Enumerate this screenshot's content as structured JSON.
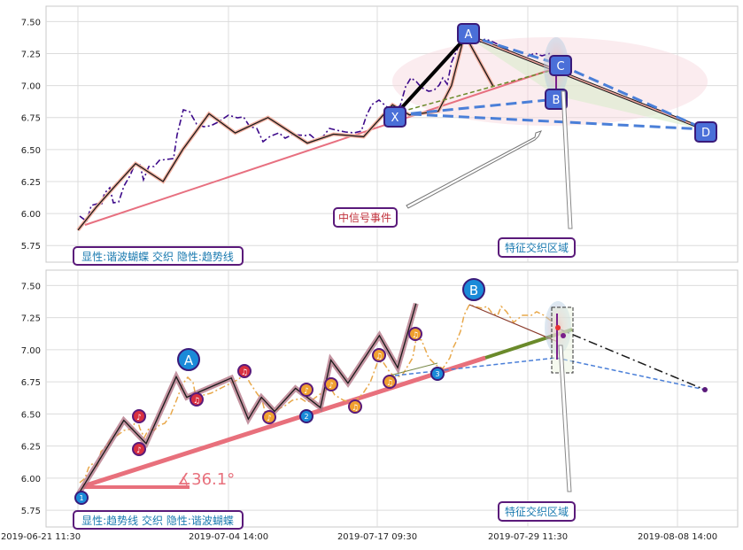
{
  "chart_data": [
    {
      "type": "line",
      "panel": "top",
      "ylim": [
        5.62,
        7.62
      ],
      "yticks": [
        "7.50",
        "7.25",
        "7.00",
        "6.75",
        "6.50",
        "6.25",
        "6.00",
        "5.75"
      ],
      "x": [
        0,
        1.4,
        2.8,
        4.4,
        6.5,
        8.0,
        10.0,
        12.0,
        14.5,
        17.5,
        19.5,
        21.8,
        24.0,
        25.3,
        27.5,
        28.5,
        29.5,
        31.7
      ],
      "series": [
        {
          "values": [
            5.87,
            6.05,
            6.21,
            6.39,
            6.25,
            6.5,
            6.78,
            6.63,
            6.75,
            6.55,
            6.62,
            6.6,
            6.85,
            6.77,
            6.8,
            7.0,
            7.4,
            6.99
          ]
        }
      ],
      "pattern": [
        {
          "label": "X",
          "x": 20.6,
          "y": 6.77
        },
        {
          "label": "A",
          "x": 26.0,
          "y": 7.4
        },
        {
          "label": "B",
          "x": 32.1,
          "y": 6.87
        },
        {
          "label": "C",
          "x": 32.1,
          "y": 7.15
        },
        {
          "label": "D",
          "x": 43.8,
          "y": 6.62
        }
      ],
      "trendline": {
        "x": [
          0,
          31.0
        ],
        "y": [
          5.87,
          6.98
        ]
      },
      "annotations": {
        "event_label": "中信号事件",
        "zone_label": "特征交织区域",
        "info_box": "显性:谐波蝴蝶 交织 隐性:趋势线"
      }
    },
    {
      "type": "line",
      "panel": "bottom",
      "ylim": [
        5.62,
        7.62
      ],
      "yticks": [
        "7.50",
        "7.25",
        "7.00",
        "6.75",
        "6.50",
        "6.25",
        "6.00",
        "5.75"
      ],
      "xticks": [
        "2019-06-21 11:30",
        "2019-07-04 14:00",
        "2019-07-17 09:30",
        "2019-07-29 11:30",
        "2019-08-08 14:00"
      ],
      "x": [
        0,
        3.5,
        5.2,
        7.5,
        8.3,
        11.7,
        13.0,
        14.0,
        15.0,
        16.6,
        18.5,
        19.3,
        20.6,
        23.0,
        24.4,
        25.8
      ],
      "series": [
        {
          "values": [
            5.87,
            6.45,
            6.27,
            6.79,
            6.63,
            6.78,
            6.46,
            6.63,
            6.52,
            6.7,
            6.55,
            6.92,
            6.74,
            7.11,
            6.86,
            7.36
          ]
        }
      ],
      "big_labels": [
        {
          "label": "A",
          "x": 7.5,
          "y": 6.89
        },
        {
          "label": "B",
          "x": 25.8,
          "y": 7.46
        }
      ],
      "trendline": {
        "x": [
          0,
          34.0
        ],
        "y": [
          5.87,
          7.16
        ]
      },
      "angle_label": "∡36.1°",
      "annotations": {
        "zone_label": "特征交织区域",
        "info_box": "显性:趋势线 交织 隐性:谐波蝴蝶"
      }
    }
  ]
}
